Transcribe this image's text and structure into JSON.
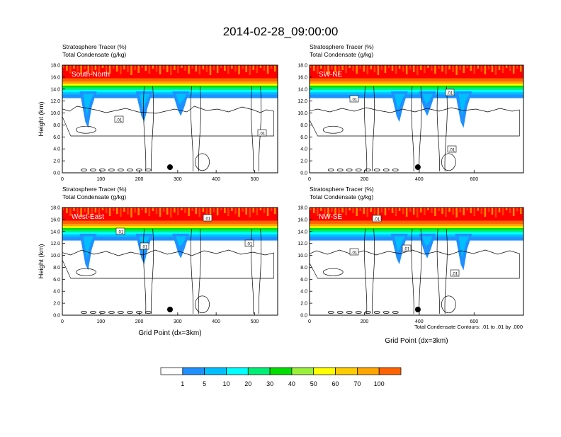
{
  "title": "2014-02-28_09:00:00",
  "chart_data": [
    {
      "type": "heatmap",
      "section": "South-North",
      "title_line1": "Stratosphere Tracer   (%)",
      "title_line2": "Total Condensate   (g/kg)",
      "ylabel": "Height (km)",
      "xlabel": "",
      "xlim": [
        0,
        560
      ],
      "ylim": [
        0,
        18
      ],
      "xticks": [
        0,
        100,
        200,
        300,
        400,
        500
      ],
      "yticks": [
        "0.0",
        "2.0",
        "4.0",
        "6.0",
        "8.0",
        "10.0",
        "12.0",
        "14.0",
        "16.0",
        "18.0"
      ],
      "contour_labels": [
        ".01",
        ".01"
      ],
      "marker_x": 280
    },
    {
      "type": "heatmap",
      "section": "SW-NE",
      "title_line1": "Stratosphere Tracer   (%)",
      "title_line2": "Total Condensate   (g/kg)",
      "ylabel": "",
      "xlabel": "",
      "xlim": [
        0,
        780
      ],
      "ylim": [
        0,
        18
      ],
      "xticks": [
        0,
        200,
        400,
        600
      ],
      "yticks": [
        "0.0",
        "2.0",
        "4.0",
        "6.0",
        "8.0",
        "10.0",
        "12.0",
        "14.0",
        "16.0",
        "18.0"
      ],
      "contour_labels": [
        ".01",
        ".01",
        ".01"
      ],
      "marker_x": 395
    },
    {
      "type": "heatmap",
      "section": "West-East",
      "title_line1": "Stratosphere Tracer   (%)",
      "title_line2": "Total Condensate   (g/kg)",
      "ylabel": "Height (km)",
      "xlabel": "Grid Point (dx=3km)",
      "xlim": [
        0,
        560
      ],
      "ylim": [
        0,
        18
      ],
      "xticks": [
        0,
        100,
        200,
        300,
        400,
        500
      ],
      "yticks": [
        "0.0",
        "2.0",
        "4.0",
        "6.0",
        "8.0",
        "10.0",
        "12.0",
        "14.0",
        "16.0",
        "18.0"
      ],
      "contour_labels": [
        ".01",
        ".01",
        ".01",
        ".01"
      ],
      "marker_x": 280
    },
    {
      "type": "heatmap",
      "section": "NW-SE",
      "title_line1": "Stratosphere Tracer   (%)",
      "title_line2": "Total Condensate   (g/kg)",
      "ylabel": "",
      "xlabel": "Grid Point (dx=3km)",
      "xlim": [
        0,
        780
      ],
      "ylim": [
        0,
        18
      ],
      "xticks": [
        0,
        200,
        400,
        600
      ],
      "yticks": [
        "0.0",
        "2.0",
        "4.0",
        "6.0",
        "8.0",
        "10.0",
        "12.0",
        "14.0",
        "16.0",
        "18.0"
      ],
      "contour_labels": [
        ".01",
        ".01",
        ".01",
        ".01"
      ],
      "marker_x": 395
    }
  ],
  "contour_info": "Total Condensate Contours: .01 to .01 by .000",
  "colorbar": {
    "labels": [
      "1",
      "5",
      "10",
      "20",
      "30",
      "40",
      "50",
      "60",
      "70",
      "100"
    ],
    "colors": [
      "#ffffff",
      "#1e90ff",
      "#00bfff",
      "#00ffff",
      "#00ee76",
      "#00dd00",
      "#9aef3a",
      "#ffff00",
      "#ffcc00",
      "#ffa500",
      "#ff6300",
      "#ff0000"
    ]
  }
}
